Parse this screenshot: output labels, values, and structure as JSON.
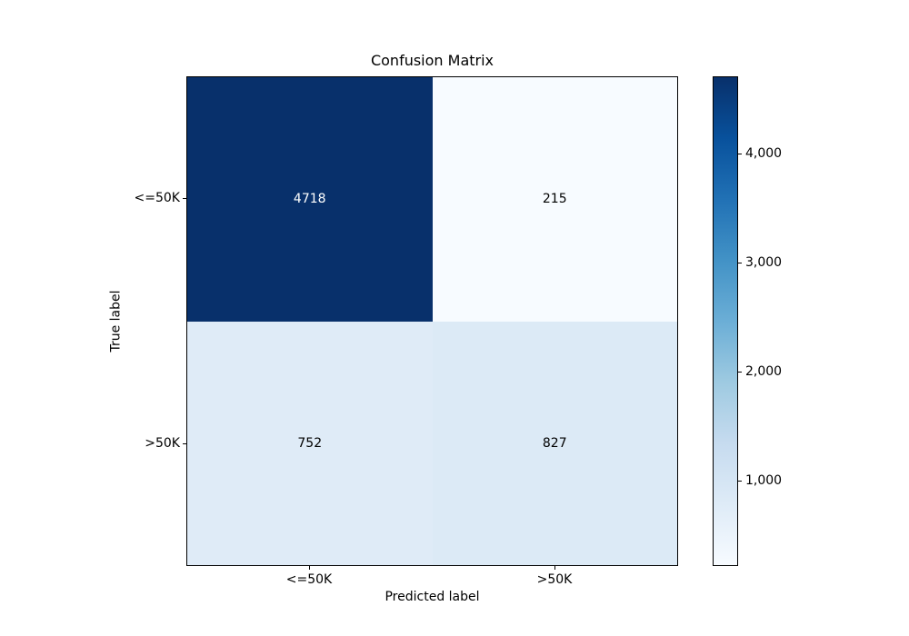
{
  "figure": {
    "background": "#ffffff"
  },
  "chart_data": {
    "type": "heatmap",
    "title": "Confusion Matrix",
    "xlabel": "Predicted label",
    "ylabel": "True label",
    "x_tick_labels": [
      "<=50K",
      ">50K"
    ],
    "y_tick_labels": [
      "<=50K",
      ">50K"
    ],
    "matrix": [
      [
        4718,
        215
      ],
      [
        752,
        827
      ]
    ],
    "vmin": 215,
    "vmax": 4718,
    "colormap": "Blues",
    "grid": false,
    "cells": [
      {
        "row": 0,
        "col": 0,
        "value": 4718,
        "label": "4718",
        "bg": "#08306b",
        "fg": "#ffffff"
      },
      {
        "row": 0,
        "col": 1,
        "value": 215,
        "label": "215",
        "bg": "#f7fbff",
        "fg": "#000000"
      },
      {
        "row": 1,
        "col": 0,
        "value": 752,
        "label": "752",
        "bg": "#dfebf7",
        "fg": "#000000"
      },
      {
        "row": 1,
        "col": 1,
        "value": 827,
        "label": "827",
        "bg": "#dceaf6",
        "fg": "#000000"
      }
    ],
    "colorbar": {
      "position": "right",
      "ticks": [
        {
          "value": 4000,
          "label": "4,000"
        },
        {
          "value": 3000,
          "label": "3,000"
        },
        {
          "value": 2000,
          "label": "2,000"
        },
        {
          "value": 1000,
          "label": "1,000"
        }
      ],
      "gradient": [
        "#f7fbff",
        "#deebf7",
        "#c6dbef",
        "#9ecae1",
        "#6baed6",
        "#4292c6",
        "#2171b5",
        "#08519c",
        "#08306b"
      ]
    }
  }
}
